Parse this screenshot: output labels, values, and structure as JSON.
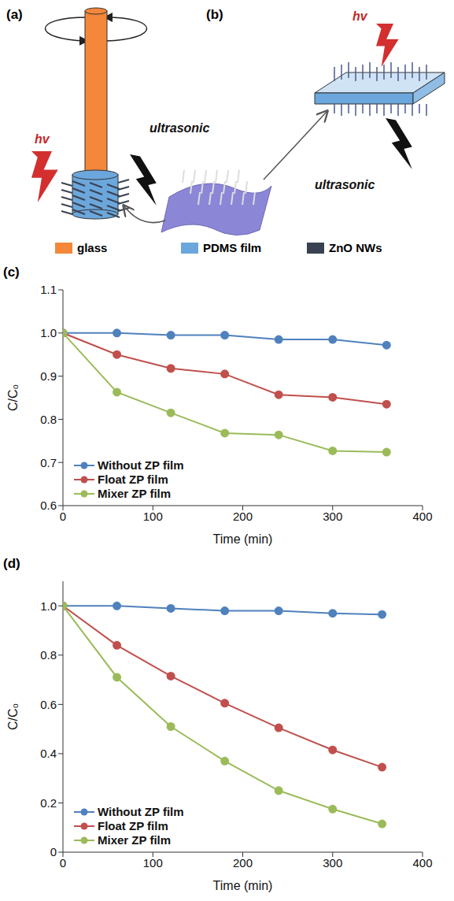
{
  "diagram": {
    "a": {
      "panel": "(a)",
      "light": "hv",
      "sound": "ultrasonic"
    },
    "b": {
      "panel": "(b)",
      "light": "hv",
      "sound": "ultrasonic"
    },
    "key": [
      {
        "label": "glass",
        "color": "#f4873a"
      },
      {
        "label": "PDMS film",
        "color": "#6ba7dc"
      },
      {
        "label": "ZnO NWs",
        "color": "#3a4150"
      }
    ]
  },
  "chart_data": [
    {
      "type": "line",
      "panel": "(c)",
      "x_label": "Time (min)",
      "y_label": "C/C₀",
      "x": [
        0,
        60,
        120,
        180,
        240,
        300,
        360
      ],
      "series": [
        {
          "name": "Without ZP film",
          "color": "#4f81bd",
          "marker": "circle",
          "values": [
            1.0,
            1.0,
            0.995,
            0.995,
            0.985,
            0.985,
            0.972
          ]
        },
        {
          "name": "Float ZP film",
          "color": "#c0504d",
          "marker": "circle",
          "values": [
            1.0,
            0.95,
            0.918,
            0.905,
            0.857,
            0.851,
            0.835
          ]
        },
        {
          "name": "Mixer ZP film",
          "color": "#9bbb59",
          "marker": "circle",
          "values": [
            1.0,
            0.863,
            0.815,
            0.768,
            0.764,
            0.727,
            0.724
          ]
        }
      ],
      "xlim": [
        0,
        400
      ],
      "xticks": [
        0,
        100,
        200,
        300,
        400
      ],
      "ylim": [
        0.6,
        1.1
      ],
      "yticks": [
        0.6,
        0.7,
        0.8,
        0.9,
        {
          "value": 1,
          "label": "1.0"
        },
        1.1
      ],
      "grid": false,
      "legend": "lower left"
    },
    {
      "type": "line",
      "panel": "(d)",
      "x_label": "Time (min)",
      "y_label": "C/C₀",
      "x": [
        0,
        60,
        120,
        180,
        240,
        300,
        355
      ],
      "series": [
        {
          "name": "Without ZP film",
          "color": "#4f81bd",
          "marker": "circle",
          "values": [
            1.0,
            1.0,
            0.99,
            0.98,
            0.98,
            0.97,
            0.965
          ]
        },
        {
          "name": "Float ZP film",
          "color": "#c0504d",
          "marker": "circle",
          "values": [
            1.0,
            0.84,
            0.715,
            0.605,
            0.505,
            0.415,
            0.345
          ]
        },
        {
          "name": "Mixer ZP film",
          "color": "#9bbb59",
          "marker": "circle",
          "values": [
            1.0,
            0.71,
            0.51,
            0.37,
            0.25,
            0.175,
            0.115
          ]
        }
      ],
      "xlim": [
        0,
        400
      ],
      "xticks": [
        0,
        100,
        200,
        300,
        400
      ],
      "ylim": [
        0,
        1.1
      ],
      "yticks": [
        0,
        0.2,
        0.4,
        0.6,
        0.8,
        {
          "value": 1,
          "label": "1.0"
        }
      ],
      "grid": false,
      "legend": "lower left"
    }
  ]
}
